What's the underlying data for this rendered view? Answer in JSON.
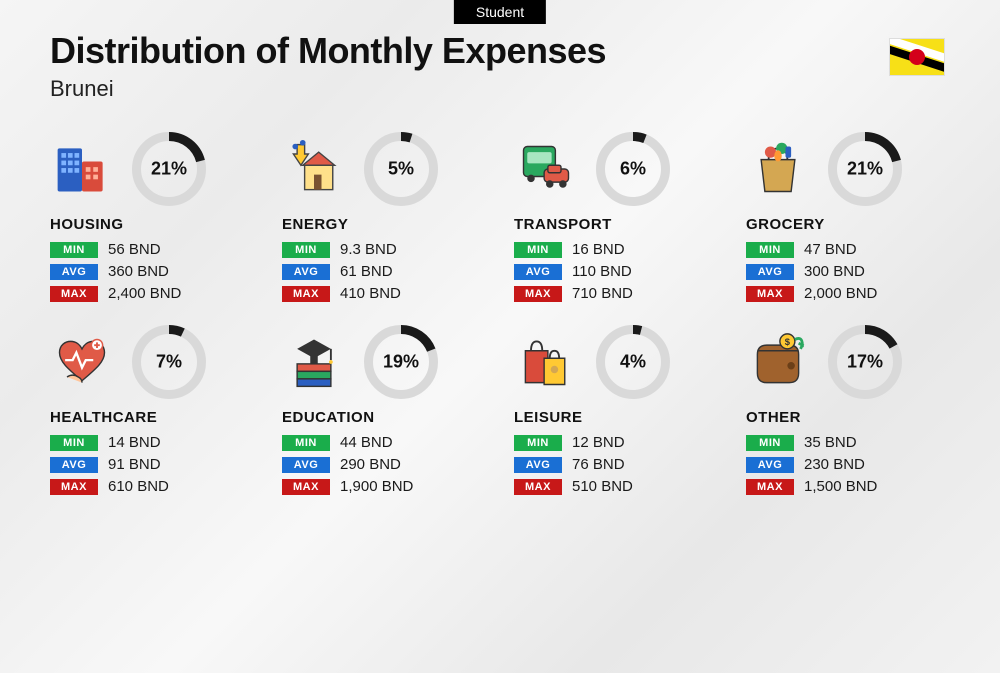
{
  "tag": "Student",
  "title": "Distribution of Monthly Expenses",
  "country": "Brunei",
  "currency": "BND",
  "labels": {
    "min": "MIN",
    "avg": "AVG",
    "max": "MAX"
  },
  "colors": {
    "min": "#1aad4b",
    "avg": "#1a6fd4",
    "max": "#c71818",
    "donut_track": "#d9d9d9",
    "donut_fill": "#1a1a1a",
    "background": "#f2f2f2"
  },
  "donut": {
    "size": 74,
    "thickness": 9
  },
  "categories": [
    {
      "id": "housing",
      "name": "HOUSING",
      "percent": 21,
      "min": "56 BND",
      "avg": "360 BND",
      "max": "2,400 BND"
    },
    {
      "id": "energy",
      "name": "ENERGY",
      "percent": 5,
      "min": "9.3 BND",
      "avg": "61 BND",
      "max": "410 BND"
    },
    {
      "id": "transport",
      "name": "TRANSPORT",
      "percent": 6,
      "min": "16 BND",
      "avg": "110 BND",
      "max": "710 BND"
    },
    {
      "id": "grocery",
      "name": "GROCERY",
      "percent": 21,
      "min": "47 BND",
      "avg": "300 BND",
      "max": "2,000 BND"
    },
    {
      "id": "healthcare",
      "name": "HEALTHCARE",
      "percent": 7,
      "min": "14 BND",
      "avg": "91 BND",
      "max": "610 BND"
    },
    {
      "id": "education",
      "name": "EDUCATION",
      "percent": 19,
      "min": "44 BND",
      "avg": "290 BND",
      "max": "1,900 BND"
    },
    {
      "id": "leisure",
      "name": "LEISURE",
      "percent": 4,
      "min": "12 BND",
      "avg": "76 BND",
      "max": "510 BND"
    },
    {
      "id": "other",
      "name": "OTHER",
      "percent": 17,
      "min": "35 BND",
      "avg": "230 BND",
      "max": "1,500 BND"
    }
  ]
}
